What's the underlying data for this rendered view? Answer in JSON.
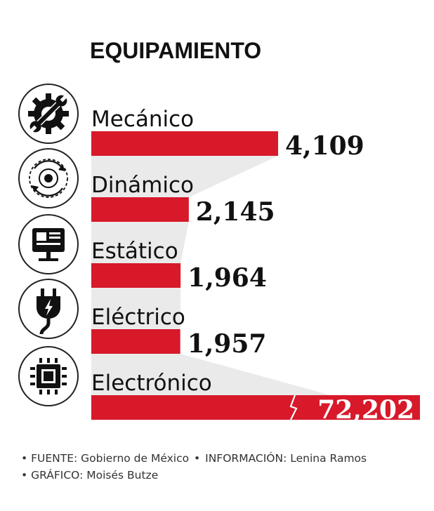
{
  "chart_data": {
    "type": "bar",
    "orientation": "horizontal",
    "title": "EQUIPAMIENTO",
    "categories": [
      "Mecánico",
      "Dinámico",
      "Estático",
      "Eléctrico",
      "Electrónico"
    ],
    "values": [
      4109,
      2145,
      1964,
      1957,
      72202
    ],
    "value_labels": [
      "4,109",
      "2,145",
      "1,964",
      "1,957",
      "72,202"
    ],
    "axis_break_on": "Electrónico",
    "legend": "none",
    "grid": false
  },
  "icons": [
    "wrench-gear-icon",
    "rotating-disc-icon",
    "monitor-icon",
    "plug-icon",
    "chip-icon"
  ],
  "colors": {
    "bar": "#d7192a",
    "band": "#eaeaea",
    "icon_stroke": "#222222",
    "text": "#111111"
  },
  "footer": {
    "bullet": "•",
    "fuente_label": "FUENTE:",
    "fuente_value": "Gobierno de México",
    "info_label": "INFORMACIÓN:",
    "info_value": "Lenina Ramos",
    "grafico_label": "GRÁFICO:",
    "grafico_value": "Moisés Butze"
  }
}
